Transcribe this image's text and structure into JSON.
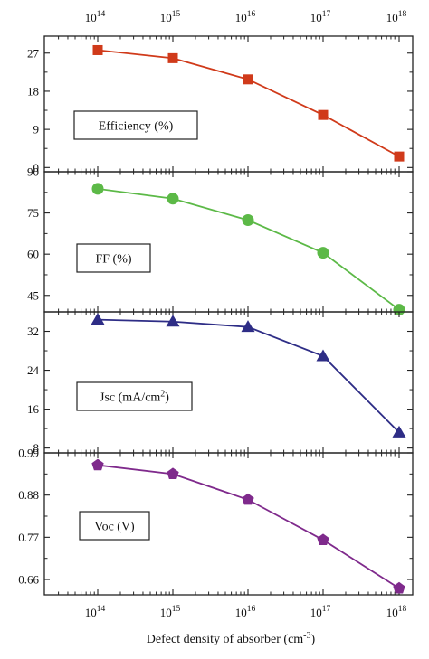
{
  "chart_data": {
    "type": "line",
    "xlabel": "Defect density of absorber (cm",
    "xlabel_sup": "-3",
    "xlabel_close": ")",
    "xscale": "log",
    "x": [
      100000000000000.0,
      1000000000000000.0,
      1e+16,
      1e+17,
      1e+18
    ],
    "x_tick_labels": [
      {
        "base": "10",
        "exp": "14"
      },
      {
        "base": "10",
        "exp": "15"
      },
      {
        "base": "10",
        "exp": "16"
      },
      {
        "base": "10",
        "exp": "17"
      },
      {
        "base": "10",
        "exp": "18"
      }
    ],
    "panels": [
      {
        "label": "Efficiency (%)",
        "label_sup": "",
        "label_tail": "",
        "ylim": [
          -1,
          31
        ],
        "yticks": [
          0,
          9,
          18,
          27
        ],
        "marker": "square",
        "color": "#d03a1a",
        "values": [
          27.7,
          25.8,
          20.8,
          12.4,
          2.6
        ]
      },
      {
        "label": "FF (%)",
        "label_sup": "",
        "label_tail": "",
        "ylim": [
          39,
          90
        ],
        "yticks": [
          45,
          60,
          75,
          90
        ],
        "marker": "circle",
        "color": "#5cb947",
        "values": [
          83.8,
          80.2,
          72.4,
          60.5,
          39.8
        ]
      },
      {
        "label": "Jsc (mA/cm",
        "label_sup": "2",
        "label_tail": ")",
        "ylim": [
          7,
          36
        ],
        "yticks": [
          8,
          16,
          24,
          32
        ],
        "marker": "triangle",
        "color": "#2e2d86",
        "values": [
          34.4,
          34.0,
          32.9,
          26.9,
          11.2
        ]
      },
      {
        "label": "Voc (V)",
        "label_sup": "",
        "label_tail": "",
        "ylim": [
          0.62,
          0.99
        ],
        "yticks": [
          0.66,
          0.77,
          0.88,
          0.99
        ],
        "ytick_labels": [
          "0.66",
          "0.77",
          "0.88",
          "0.99"
        ],
        "marker": "pentagon",
        "color": "#7f2a8c",
        "values": [
          0.958,
          0.935,
          0.868,
          0.763,
          0.637
        ]
      }
    ]
  }
}
